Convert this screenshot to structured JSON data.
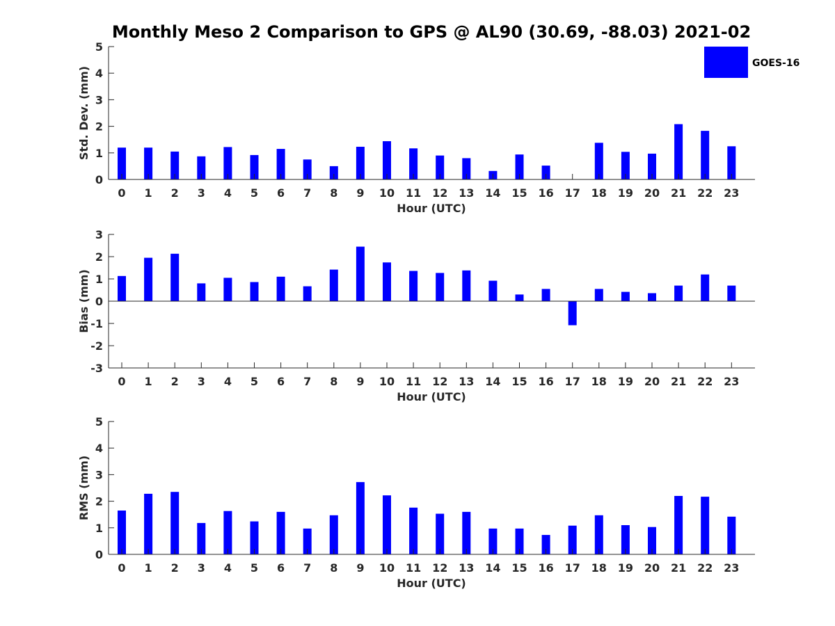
{
  "title": "Monthly Meso 2 Comparison to GPS @ AL90 (30.69, -88.03) 2021-02",
  "legend": {
    "label": "GOES-16",
    "placement": "top-right"
  },
  "colors": {
    "bar": "#0000ff",
    "axis": "#262626",
    "text": "#262626"
  },
  "chart_data": [
    {
      "type": "bar",
      "ylabel": "Std. Dev. (mm)",
      "xlabel": "Hour (UTC)",
      "ylim": [
        0,
        5
      ],
      "yticks": [
        "0",
        "1",
        "2",
        "3",
        "4",
        "5"
      ],
      "categories": [
        "0",
        "1",
        "2",
        "3",
        "4",
        "5",
        "6",
        "7",
        "8",
        "9",
        "10",
        "11",
        "12",
        "13",
        "14",
        "15",
        "16",
        "17",
        "18",
        "19",
        "20",
        "21",
        "22",
        "23"
      ],
      "series": [
        {
          "name": "GOES-16",
          "values": [
            1.2,
            1.2,
            1.05,
            0.87,
            1.22,
            0.92,
            1.15,
            0.75,
            0.5,
            1.23,
            1.44,
            1.17,
            0.9,
            0.8,
            0.32,
            0.94,
            0.52,
            0.0,
            1.38,
            1.04,
            0.97,
            2.08,
            1.83,
            1.25
          ]
        }
      ]
    },
    {
      "type": "bar",
      "ylabel": "Bias (mm)",
      "xlabel": "Hour (UTC)",
      "ylim": [
        -3,
        3
      ],
      "yticks": [
        "-3",
        "-2",
        "-1",
        "0",
        "1",
        "2",
        "3"
      ],
      "categories": [
        "0",
        "1",
        "2",
        "3",
        "4",
        "5",
        "6",
        "7",
        "8",
        "9",
        "10",
        "11",
        "12",
        "13",
        "14",
        "15",
        "16",
        "17",
        "18",
        "19",
        "20",
        "21",
        "22",
        "23"
      ],
      "series": [
        {
          "name": "GOES-16",
          "values": [
            1.13,
            1.95,
            2.13,
            0.8,
            1.05,
            0.86,
            1.1,
            0.67,
            1.42,
            2.45,
            1.74,
            1.36,
            1.27,
            1.38,
            0.92,
            0.3,
            0.55,
            -1.08,
            0.55,
            0.42,
            0.36,
            0.7,
            1.2,
            0.7
          ]
        }
      ]
    },
    {
      "type": "bar",
      "ylabel": "RMS (mm)",
      "xlabel": "Hour (UTC)",
      "ylim": [
        0,
        5
      ],
      "yticks": [
        "0",
        "1",
        "2",
        "3",
        "4",
        "5"
      ],
      "categories": [
        "0",
        "1",
        "2",
        "3",
        "4",
        "5",
        "6",
        "7",
        "8",
        "9",
        "10",
        "11",
        "12",
        "13",
        "14",
        "15",
        "16",
        "17",
        "18",
        "19",
        "20",
        "21",
        "22",
        "23"
      ],
      "series": [
        {
          "name": "GOES-16",
          "values": [
            1.65,
            2.28,
            2.35,
            1.18,
            1.63,
            1.24,
            1.6,
            0.97,
            1.47,
            2.72,
            2.22,
            1.76,
            1.53,
            1.6,
            0.97,
            0.97,
            0.73,
            1.08,
            1.47,
            1.1,
            1.03,
            2.2,
            2.17,
            1.42
          ]
        }
      ]
    }
  ]
}
